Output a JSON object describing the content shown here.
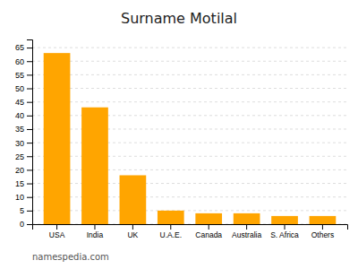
{
  "chart_data": {
    "type": "bar",
    "title": "Surname Motilal",
    "categories": [
      "USA",
      "India",
      "UK",
      "U.A.E.",
      "Canada",
      "Australia",
      "S. Africa",
      "Others"
    ],
    "values": [
      63,
      43,
      18,
      5,
      4,
      4,
      3,
      3
    ],
    "color": "#FFA500",
    "ylim": [
      0,
      68
    ],
    "yticks": [
      0,
      5,
      10,
      15,
      20,
      25,
      30,
      35,
      40,
      45,
      50,
      55,
      60,
      65
    ],
    "grid": true,
    "annotations": [
      "namespedia.com"
    ]
  }
}
